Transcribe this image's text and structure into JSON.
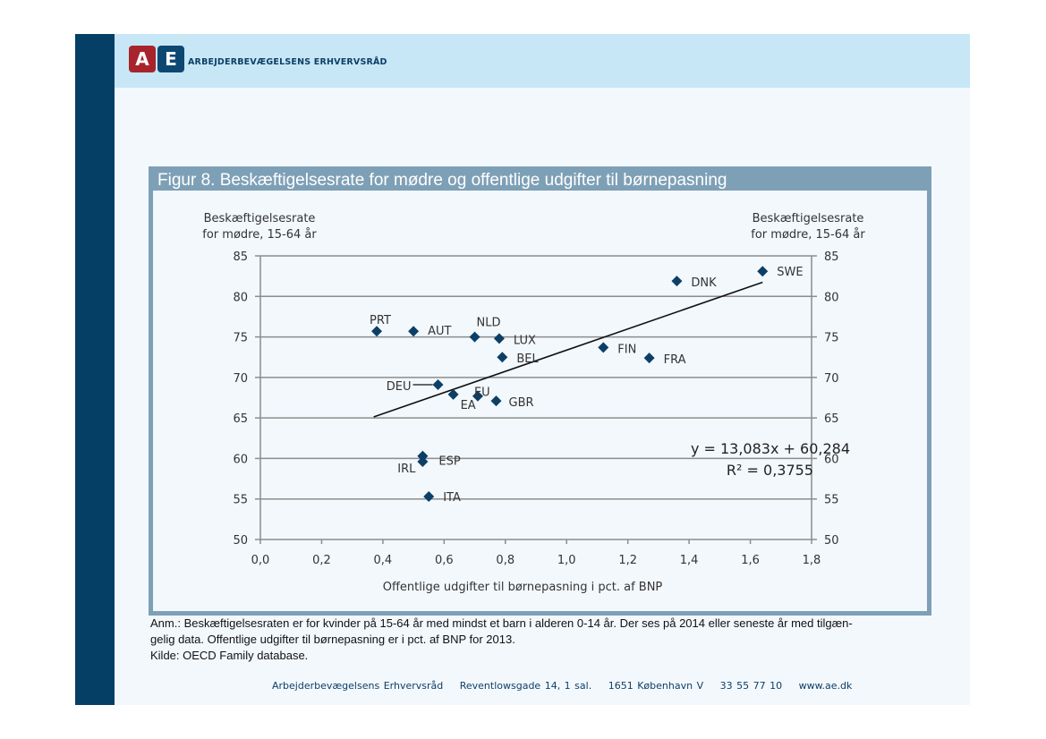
{
  "header": {
    "logo_letters": [
      "A",
      "E"
    ],
    "brand_name": "ARBEJDERBEVÆGELSENS ERHVERVSRÅD"
  },
  "figure": {
    "title": "Figur 8. Beskæftigelsesrate for mødre og offentlige udgifter til børnepasning",
    "note_line1": "Anm.: Beskæftigelsesraten er for kvinder på 15-64 år med mindst et barn i alderen 0-14 år. Der ses på 2014 eller seneste år med tilgæn-",
    "note_line2": "gelig data. Offentlige udgifter til børnepasning er i pct. af BNP for 2013.",
    "source": "Kilde: OECD Family database."
  },
  "footer": {
    "org": "Arbejderbevægelsens Erhvervsråd",
    "street": "Reventlowsgade 14, 1 sal.",
    "city": "1651 København V",
    "phone": "33 55 77 10",
    "web": "www.ae.dk"
  },
  "colors": {
    "marker": "#0d3f66",
    "sidebar": "#063f66",
    "header_bg": "#c7e7f7",
    "figure_frame": "#7ea0b7",
    "logo_a": "#a8242c",
    "logo_e": "#0d4873"
  },
  "chart_data": {
    "type": "scatter",
    "title": "Figur 8. Beskæftigelsesrate for mødre og offentlige udgifter til børnepasning",
    "xlabel": "Offentlige udgifter til børnepasning i pct. af BNP",
    "ylabel_left": [
      "Beskæftigelsesrate",
      "for mødre, 15-64 år"
    ],
    "ylabel_right": [
      "Beskæftigelsesrate",
      "for mødre, 15-64 år"
    ],
    "xlim": [
      0.0,
      1.8
    ],
    "ylim": [
      50,
      85
    ],
    "x_ticks": [
      "0,0",
      "0,2",
      "0,4",
      "0,6",
      "0,8",
      "1,0",
      "1,2",
      "1,4",
      "1,6",
      "1,8"
    ],
    "y_ticks": [
      "50",
      "55",
      "60",
      "65",
      "70",
      "75",
      "80",
      "85"
    ],
    "grid": "horizontal",
    "points": [
      {
        "label": "PRT",
        "x": 0.38,
        "y": 75.7
      },
      {
        "label": "AUT",
        "x": 0.5,
        "y": 75.7
      },
      {
        "label": "NLD",
        "x": 0.7,
        "y": 75.0
      },
      {
        "label": "LUX",
        "x": 0.78,
        "y": 74.8
      },
      {
        "label": "BEL",
        "x": 0.79,
        "y": 72.5
      },
      {
        "label": "DEU",
        "x": 0.58,
        "y": 69.1
      },
      {
        "label": "EA",
        "x": 0.63,
        "y": 67.9
      },
      {
        "label": "EU",
        "x": 0.71,
        "y": 67.7
      },
      {
        "label": "GBR",
        "x": 0.77,
        "y": 67.1
      },
      {
        "label": "ESP",
        "x": 0.53,
        "y": 60.3
      },
      {
        "label": "IRL",
        "x": 0.53,
        "y": 59.6
      },
      {
        "label": "ITA",
        "x": 0.55,
        "y": 55.3
      },
      {
        "label": "FIN",
        "x": 1.12,
        "y": 73.7
      },
      {
        "label": "FRA",
        "x": 1.27,
        "y": 72.4
      },
      {
        "label": "DNK",
        "x": 1.36,
        "y": 81.9
      },
      {
        "label": "SWE",
        "x": 1.64,
        "y": 83.1
      }
    ],
    "trendline": {
      "slope": 13.083,
      "intercept": 60.284,
      "x_range": [
        0.37,
        1.64
      ],
      "equation": "y = 13,083x + 60,284",
      "r_squared": "R² = 0,3755"
    }
  }
}
